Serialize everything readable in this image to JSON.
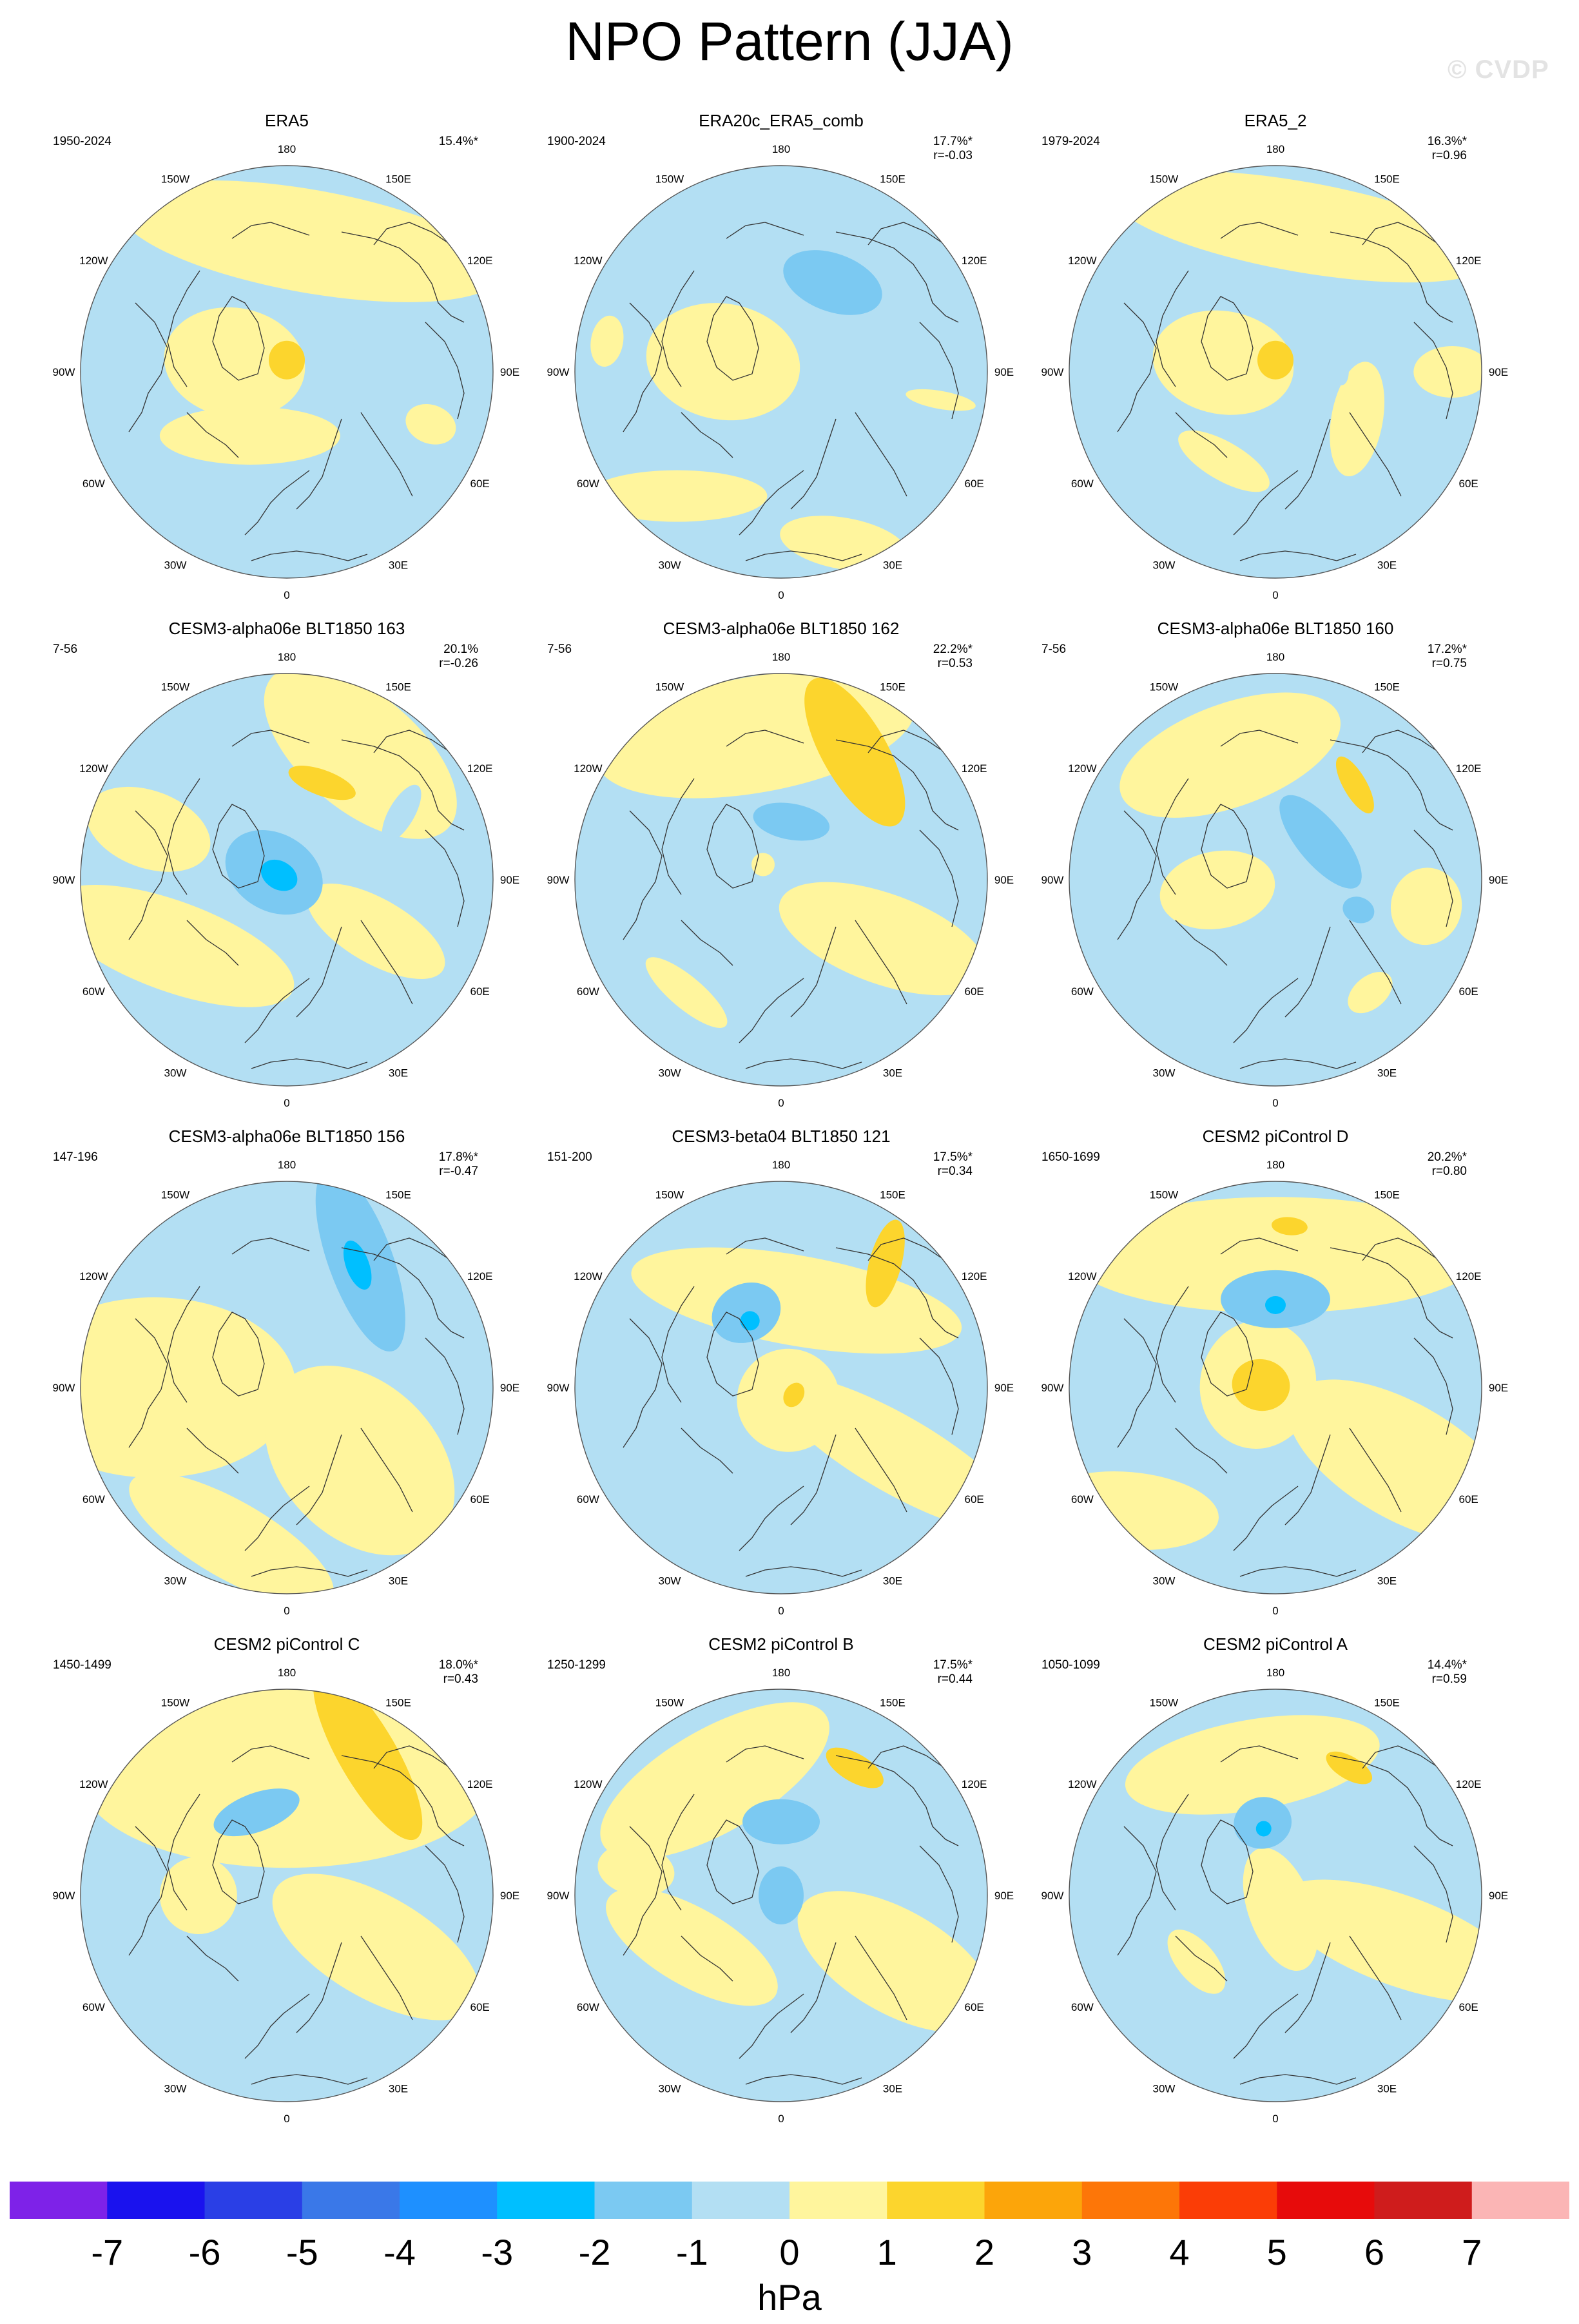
{
  "title": "NPO Pattern (JJA)",
  "watermark": "© CVDP",
  "colors": {
    "ocean_fill": "#b3dff3",
    "boundary": "#555555",
    "coast": "#333333"
  },
  "icons": {
    "coastline": "coastline-icon"
  },
  "map": {
    "projection": "north-polar-stereographic",
    "longitude_labels": [
      {
        "text": "180",
        "lon": 180
      },
      {
        "text": "150E",
        "lon": 150
      },
      {
        "text": "120E",
        "lon": 120
      },
      {
        "text": "90E",
        "lon": 90
      },
      {
        "text": "60E",
        "lon": 60
      },
      {
        "text": "30E",
        "lon": 30
      },
      {
        "text": "0",
        "lon": 0
      },
      {
        "text": "30W",
        "lon": -30
      },
      {
        "text": "60W",
        "lon": -60
      },
      {
        "text": "90W",
        "lon": -90
      },
      {
        "text": "120W",
        "lon": -120
      },
      {
        "text": "150W",
        "lon": -150
      }
    ]
  },
  "panels": [
    {
      "title": "ERA5",
      "years": "1950-2024",
      "pct": "15.4%*",
      "r": "",
      "anomalies": [
        {
          "lon": 95,
          "lat": 72,
          "v": -1,
          "rx": 70,
          "ry": 28,
          "rot": 0
        },
        {
          "lon": 170,
          "lat": 45,
          "v": 0.5,
          "rx": 300,
          "ry": 80,
          "rot": 0
        },
        {
          "lon": -100,
          "lat": 72,
          "v": 0.5,
          "rx": 85,
          "ry": 110,
          "rot": 0
        },
        {
          "lon": 180,
          "lat": 86,
          "v": 1.2,
          "rx": 28,
          "ry": 30,
          "rot": 0
        },
        {
          "lon": -30,
          "lat": 65,
          "v": 0.5,
          "rx": 140,
          "ry": 45,
          "rot": -30
        },
        {
          "lon": 70,
          "lat": 38,
          "v": 0.5,
          "rx": 30,
          "ry": 40,
          "rot": 0
        }
      ]
    },
    {
      "title": "ERA20c_ERA5_comb",
      "years": "1900-2024",
      "pct": "17.7%*",
      "r": "r=-0.03",
      "anomalies": [
        {
          "lon": 150,
          "lat": 55,
          "v": -1.3,
          "rx": 80,
          "ry": 45,
          "rot": -10
        },
        {
          "lon": -100,
          "lat": 70,
          "v": 0.5,
          "rx": 90,
          "ry": 120,
          "rot": 0
        },
        {
          "lon": -40,
          "lat": 35,
          "v": 0.5,
          "rx": 140,
          "ry": 40,
          "rot": -40
        },
        {
          "lon": 20,
          "lat": 28,
          "v": 0.5,
          "rx": 100,
          "ry": 40,
          "rot": 30
        },
        {
          "lon": -100,
          "lat": 30,
          "v": 0.5,
          "rx": 40,
          "ry": 25,
          "rot": 0
        },
        {
          "lon": 80,
          "lat": 35,
          "v": 0.5,
          "rx": 14,
          "ry": 55,
          "rot": 0
        }
      ]
    },
    {
      "title": "ERA5_2",
      "years": "1979-2024",
      "pct": "16.3%*",
      "r": "r=0.96",
      "anomalies": [
        {
          "lon": 170,
          "lat": 40,
          "v": 0.5,
          "rx": 300,
          "ry": 70,
          "rot": 0
        },
        {
          "lon": 110,
          "lat": 70,
          "v": -1,
          "rx": 55,
          "ry": 22,
          "rot": 0
        },
        {
          "lon": 180,
          "lat": 86,
          "v": 1.2,
          "rx": 28,
          "ry": 30,
          "rot": 0
        },
        {
          "lon": -100,
          "lat": 72,
          "v": 0.5,
          "rx": 80,
          "ry": 110,
          "rot": 0
        },
        {
          "lon": 60,
          "lat": 58,
          "v": 0.5,
          "rx": 90,
          "ry": 40,
          "rot": -20
        },
        {
          "lon": -30,
          "lat": 55,
          "v": 0.5,
          "rx": 80,
          "ry": 30,
          "rot": 0
        },
        {
          "lon": 90,
          "lat": 30,
          "v": 0.5,
          "rx": 40,
          "ry": 60,
          "rot": 0
        }
      ]
    },
    {
      "title": "CESM3-alpha06e BLT1850 163",
      "years": "7-56",
      "pct": "20.1%",
      "r": "r=-0.26",
      "anomalies": [
        {
          "lon": 150,
          "lat": 40,
          "v": 0.5,
          "rx": 180,
          "ry": 90,
          "rot": 10
        },
        {
          "lon": 160,
          "lat": 55,
          "v": 1.2,
          "rx": 55,
          "ry": 20,
          "rot": 0
        },
        {
          "lon": 120,
          "lat": 45,
          "v": -1,
          "rx": 20,
          "ry": 50,
          "rot": -30
        },
        {
          "lon": -120,
          "lat": 85,
          "v": -1.3,
          "rx": 60,
          "ry": 80,
          "rot": 0
        },
        {
          "lon": -120,
          "lat": 87,
          "v": -2.5,
          "rx": 22,
          "ry": 30,
          "rot": 0
        },
        {
          "lon": -60,
          "lat": 45,
          "v": 0.5,
          "rx": 200,
          "ry": 70,
          "rot": -40
        },
        {
          "lon": -110,
          "lat": 40,
          "v": 0.5,
          "rx": 60,
          "ry": 100,
          "rot": 0
        },
        {
          "lon": 60,
          "lat": 55,
          "v": 0.5,
          "rx": 50,
          "ry": 120,
          "rot": 0
        }
      ]
    },
    {
      "title": "CESM3-alpha06e BLT1850 162",
      "years": "7-56",
      "pct": "22.2%*",
      "r": "r=0.53",
      "anomalies": [
        {
          "lon": -170,
          "lat": 40,
          "v": 0.5,
          "rx": 250,
          "ry": 90,
          "rot": 0
        },
        {
          "lon": 150,
          "lat": 40,
          "v": 1.2,
          "rx": 130,
          "ry": 50,
          "rot": 30
        },
        {
          "lon": 170,
          "lat": 70,
          "v": -1.3,
          "rx": 60,
          "ry": 28,
          "rot": 0
        },
        {
          "lon": 60,
          "lat": 50,
          "v": 0.5,
          "rx": 70,
          "ry": 170,
          "rot": -10
        },
        {
          "lon": -40,
          "lat": 40,
          "v": 0.5,
          "rx": 80,
          "ry": 25,
          "rot": 0
        },
        {
          "lon": -130,
          "lat": 82,
          "v": 0.5,
          "rx": 18,
          "ry": 18,
          "rot": 0
        }
      ]
    },
    {
      "title": "CESM3-alpha06e BLT1850 160",
      "years": "7-56",
      "pct": "17.2%*",
      "r": "r=0.75",
      "anomalies": [
        {
          "lon": -160,
          "lat": 45,
          "v": 0.5,
          "rx": 180,
          "ry": 80,
          "rot": 0
        },
        {
          "lon": 140,
          "lat": 48,
          "v": 1.2,
          "rx": 50,
          "ry": 18,
          "rot": 20
        },
        {
          "lon": 130,
          "lat": 70,
          "v": -1.3,
          "rx": 90,
          "ry": 35,
          "rot": 0
        },
        {
          "lon": -80,
          "lat": 70,
          "v": 0.5,
          "rx": 60,
          "ry": 90,
          "rot": 0
        },
        {
          "lon": 70,
          "lat": 60,
          "v": -1.3,
          "rx": 20,
          "ry": 25,
          "rot": 0
        },
        {
          "lon": 80,
          "lat": 38,
          "v": 0.5,
          "rx": 60,
          "ry": 55,
          "rot": 0
        },
        {
          "lon": 40,
          "lat": 40,
          "v": 0.5,
          "rx": 40,
          "ry": 25,
          "rot": 0
        }
      ]
    },
    {
      "title": "CESM3-alpha06e BLT1850 156",
      "years": "147-196",
      "pct": "17.8%*",
      "r": "r=-0.47",
      "anomalies": [
        {
          "lon": 150,
          "lat": 40,
          "v": -1.3,
          "rx": 150,
          "ry": 50,
          "rot": 40
        },
        {
          "lon": 150,
          "lat": 42,
          "v": -2.5,
          "rx": 40,
          "ry": 18,
          "rot": 40
        },
        {
          "lon": -90,
          "lat": 45,
          "v": 0.5,
          "rx": 140,
          "ry": 220,
          "rot": 0
        },
        {
          "lon": 45,
          "lat": 55,
          "v": 0.5,
          "rx": 120,
          "ry": 170,
          "rot": 0
        },
        {
          "lon": -20,
          "lat": 35,
          "v": 0.5,
          "rx": 180,
          "ry": 60,
          "rot": 10
        }
      ]
    },
    {
      "title": "CESM3-beta04 BLT1850 121",
      "years": "151-200",
      "pct": "17.5%*",
      "r": "r=0.34",
      "anomalies": [
        {
          "lon": 170,
          "lat": 60,
          "v": 0.5,
          "rx": 260,
          "ry": 70,
          "rot": 0
        },
        {
          "lon": -155,
          "lat": 62,
          "v": -1.3,
          "rx": 55,
          "ry": 45,
          "rot": 0
        },
        {
          "lon": -155,
          "lat": 65,
          "v": -2.5,
          "rx": 15,
          "ry": 15,
          "rot": 0
        },
        {
          "lon": 30,
          "lat": 85,
          "v": 0.5,
          "rx": 80,
          "ry": 80,
          "rot": 0
        },
        {
          "lon": 60,
          "lat": 85,
          "v": 1.2,
          "rx": 20,
          "ry": 15,
          "rot": 0
        },
        {
          "lon": 60,
          "lat": 45,
          "v": 0.5,
          "rx": 60,
          "ry": 220,
          "rot": 0
        },
        {
          "lon": 140,
          "lat": 35,
          "v": 1.2,
          "rx": 25,
          "ry": 70,
          "rot": -25
        }
      ]
    },
    {
      "title": "CESM2 piControl D",
      "years": "1650-1699",
      "pct": "20.2%*",
      "r": "r=0.80",
      "anomalies": [
        {
          "lon": 180,
          "lat": 45,
          "v": 0.5,
          "rx": 320,
          "ry": 90,
          "rot": 0
        },
        {
          "lon": 180,
          "lat": 60,
          "v": -1.3,
          "rx": 85,
          "ry": 45,
          "rot": 0
        },
        {
          "lon": 180,
          "lat": 62,
          "v": -2.5,
          "rx": 16,
          "ry": 14,
          "rot": 0
        },
        {
          "lon": 175,
          "lat": 35,
          "v": 1.2,
          "rx": 28,
          "ry": 14,
          "rot": 0
        },
        {
          "lon": -100,
          "lat": 84,
          "v": 0.5,
          "rx": 100,
          "ry": 90,
          "rot": 0
        },
        {
          "lon": -100,
          "lat": 85,
          "v": 1.2,
          "rx": 40,
          "ry": 45,
          "rot": 0
        },
        {
          "lon": 60,
          "lat": 40,
          "v": 0.5,
          "rx": 90,
          "ry": 200,
          "rot": 0
        },
        {
          "lon": -50,
          "lat": 25,
          "v": 0.5,
          "rx": 140,
          "ry": 60,
          "rot": -45
        }
      ]
    },
    {
      "title": "CESM2 piControl C",
      "years": "1450-1499",
      "pct": "18.0%*",
      "r": "r=0.43",
      "anomalies": [
        {
          "lon": 180,
          "lat": 50,
          "v": 0.5,
          "rx": 320,
          "ry": 140,
          "rot": 0
        },
        {
          "lon": 150,
          "lat": 35,
          "v": 1.2,
          "rx": 150,
          "ry": 45,
          "rot": 30
        },
        {
          "lon": -160,
          "lat": 60,
          "v": -1.3,
          "rx": 70,
          "ry": 30,
          "rot": 0
        },
        {
          "lon": 60,
          "lat": 55,
          "v": 0.5,
          "rx": 80,
          "ry": 180,
          "rot": 0
        },
        {
          "lon": -90,
          "lat": 60,
          "v": 0.5,
          "rx": 60,
          "ry": 60,
          "rot": 0
        }
      ]
    },
    {
      "title": "CESM2 piControl B",
      "years": "1250-1299",
      "pct": "17.5%*",
      "r": "r=0.44",
      "anomalies": [
        {
          "lon": -150,
          "lat": 45,
          "v": 0.5,
          "rx": 200,
          "ry": 80,
          "rot": 0
        },
        {
          "lon": 150,
          "lat": 40,
          "v": 1.2,
          "rx": 50,
          "ry": 22,
          "rot": 0
        },
        {
          "lon": 180,
          "lat": 65,
          "v": -1.3,
          "rx": 60,
          "ry": 35,
          "rot": 0
        },
        {
          "lon": 0,
          "lat": 90,
          "v": -1.3,
          "rx": 35,
          "ry": 45,
          "rot": 0
        },
        {
          "lon": 60,
          "lat": 45,
          "v": 0.5,
          "rx": 80,
          "ry": 170,
          "rot": 0
        },
        {
          "lon": -60,
          "lat": 55,
          "v": 0.5,
          "rx": 150,
          "ry": 60,
          "rot": -30
        },
        {
          "lon": -100,
          "lat": 40,
          "v": 0.5,
          "rx": 40,
          "ry": 60,
          "rot": 0
        }
      ]
    },
    {
      "title": "CESM2 piControl A",
      "years": "1050-1099",
      "pct": "14.4%*",
      "r": "r=0.59",
      "anomalies": [
        {
          "lon": -170,
          "lat": 45,
          "v": 0.5,
          "rx": 200,
          "ry": 70,
          "rot": 0
        },
        {
          "lon": 150,
          "lat": 40,
          "v": 1.2,
          "rx": 40,
          "ry": 18,
          "rot": 0
        },
        {
          "lon": -170,
          "lat": 65,
          "v": -1.3,
          "rx": 45,
          "ry": 40,
          "rot": 0
        },
        {
          "lon": -170,
          "lat": 67,
          "v": -2.5,
          "rx": 12,
          "ry": 12,
          "rot": 0
        },
        {
          "lon": 20,
          "lat": 85,
          "v": 0.5,
          "rx": 50,
          "ry": 100,
          "rot": 0
        },
        {
          "lon": 70,
          "lat": 45,
          "v": 0.5,
          "rx": 70,
          "ry": 200,
          "rot": 0
        },
        {
          "lon": -50,
          "lat": 55,
          "v": 0.5,
          "rx": 60,
          "ry": 30,
          "rot": 0
        }
      ]
    }
  ],
  "colorbar": {
    "labels": [
      "-7",
      "-6",
      "-5",
      "-4",
      "-3",
      "-2",
      "-1",
      "0",
      "1",
      "2",
      "3",
      "4",
      "5",
      "6",
      "7"
    ],
    "levels": [
      -7,
      -6,
      -5,
      -4,
      -3,
      -2,
      -1,
      0,
      1,
      2,
      3,
      4,
      5,
      6,
      7
    ],
    "colors": [
      "#7e22e8",
      "#1a12ee",
      "#2a3fe6",
      "#3a78e8",
      "#1e90ff",
      "#00bfff",
      "#7bc9f2",
      "#b3dff3",
      "#fff59d",
      "#fcd52d",
      "#fca50a",
      "#fd7608",
      "#fb3d06",
      "#e70b0b",
      "#cf1c1c",
      "#fbb5b5"
    ],
    "units": "hPa"
  }
}
